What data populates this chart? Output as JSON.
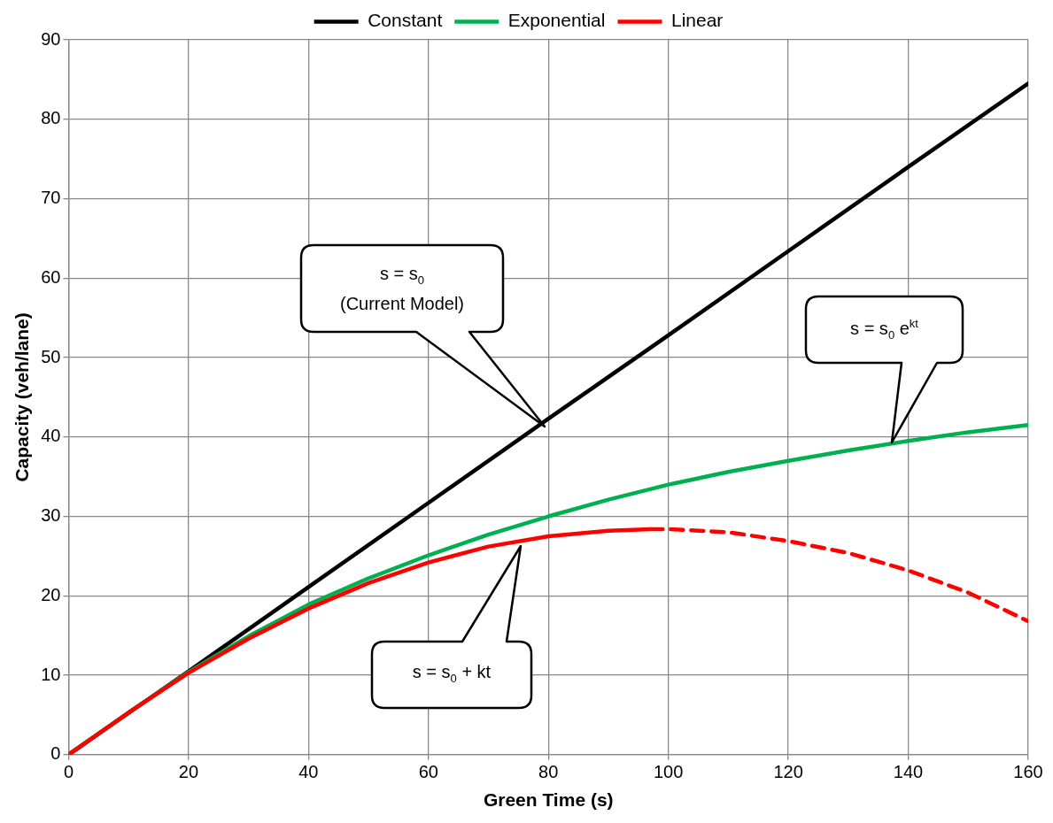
{
  "chart_data": {
    "type": "line",
    "xlabel": "Green Time (s)",
    "ylabel": "Capacity (veh/lane)",
    "xlim": [
      0,
      160
    ],
    "xticks": [
      0,
      20,
      40,
      60,
      80,
      100,
      120,
      140,
      160
    ],
    "ylim": [
      0,
      90
    ],
    "yticks": [
      0,
      10,
      20,
      30,
      40,
      50,
      60,
      70,
      80,
      90
    ],
    "grid": true,
    "legend": "top",
    "marker": "none",
    "series": [
      {
        "name": "Constant",
        "color": "#000000",
        "x": [
          0,
          20,
          40,
          60,
          80,
          100,
          120,
          140,
          160
        ],
        "values": [
          0,
          10.5,
          21.1,
          31.7,
          42.3,
          52.8,
          63.4,
          74,
          84.5
        ]
      },
      {
        "name": "Exponential",
        "color": "#00b050",
        "x": [
          0,
          10,
          20,
          30,
          40,
          50,
          60,
          70,
          80,
          90,
          100,
          110,
          120,
          130,
          140,
          150,
          160
        ],
        "values": [
          0,
          5.3,
          10.4,
          14.9,
          18.9,
          22.2,
          25.1,
          27.7,
          30.0,
          32.1,
          34.0,
          35.6,
          37.0,
          38.3,
          39.5,
          40.6,
          41.5
        ]
      },
      {
        "name": "Linear",
        "color": "#ff0000",
        "x": [
          0,
          10,
          20,
          30,
          40,
          50,
          60,
          70,
          80,
          90,
          97
        ],
        "values": [
          0,
          5.3,
          10.3,
          14.6,
          18.4,
          21.6,
          24.2,
          26.2,
          27.5,
          28.2,
          28.4
        ]
      },
      {
        "color": "#ff0000",
        "line_style": "dashed",
        "x": [
          97,
          100,
          110,
          120,
          130,
          140,
          150,
          160
        ],
        "values": [
          28.4,
          28.4,
          28.0,
          26.9,
          25.4,
          23.2,
          20.4,
          16.8
        ]
      }
    ],
    "annotations": [
      "s = s$_{0}$\n(Current Model)",
      "s = s$_{0}$ e$^{kt}$",
      "s = s$_{0}$ + kt"
    ]
  }
}
